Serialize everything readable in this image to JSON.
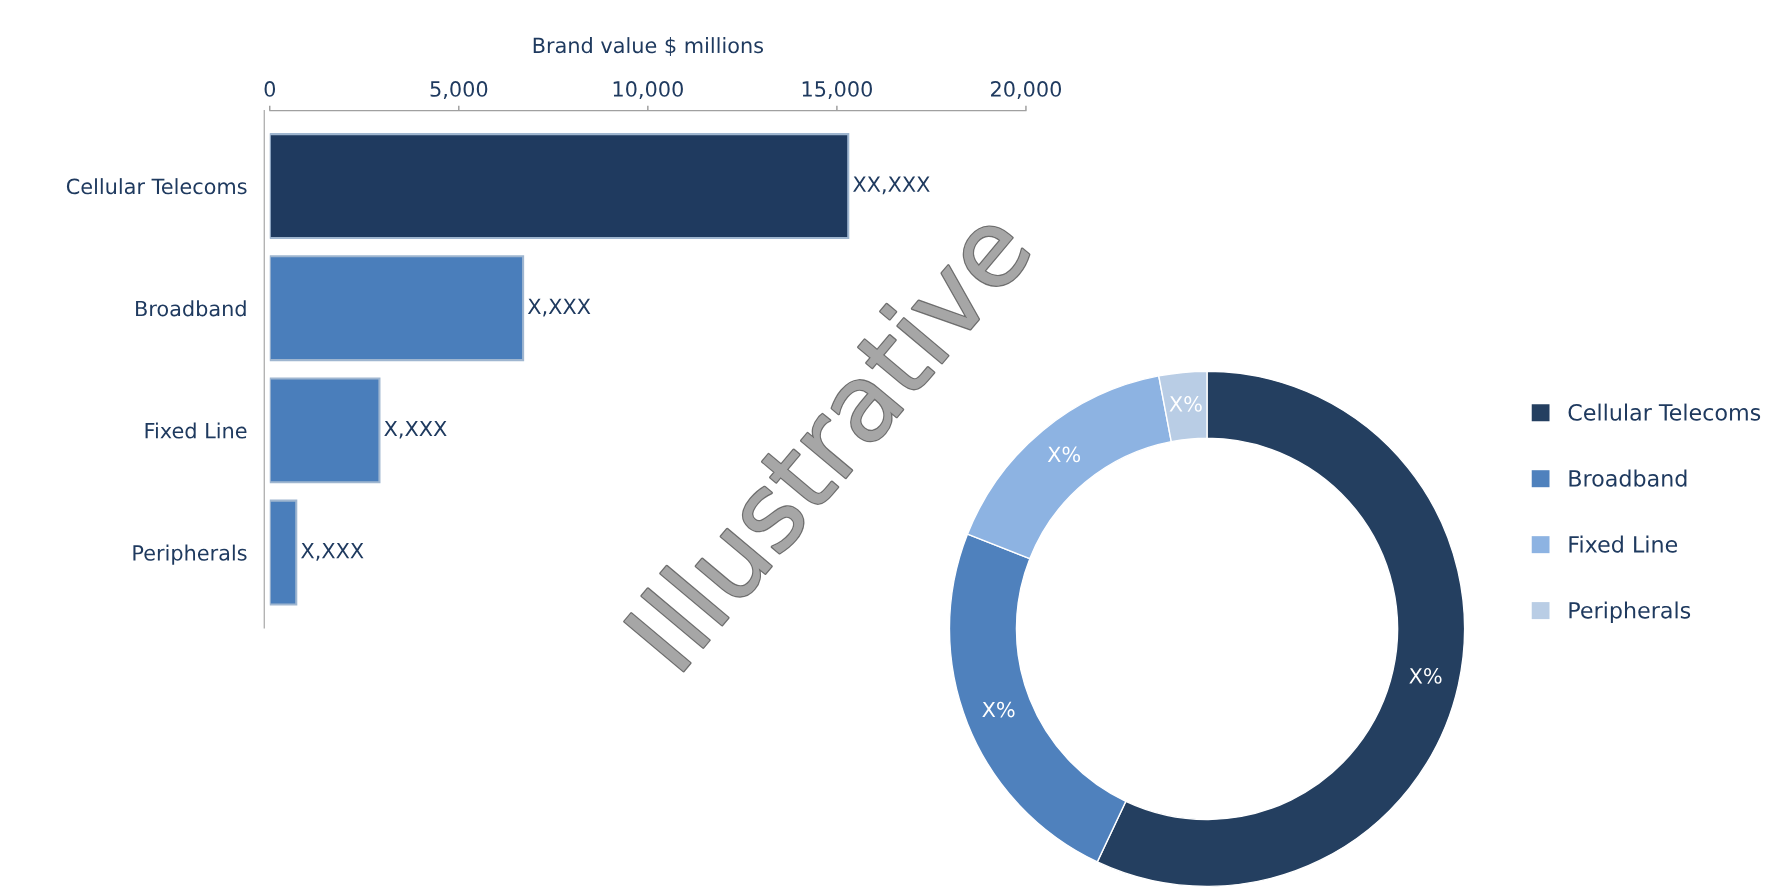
{
  "chart_data": [
    {
      "type": "bar",
      "orientation": "horizontal",
      "xlabel": "Brand value $ millions",
      "categories": [
        "Cellular Telecoms",
        "Broadband",
        "Fixed Line",
        "Peripherals"
      ],
      "values": [
        15300,
        6700,
        2900,
        700
      ],
      "colors": [
        "#1f3a5f",
        "#4a7ebb",
        "#4a7ebb",
        "#4a7ebb"
      ],
      "value_labels": [
        "XX,XXX",
        "X,XXX",
        "X,XXX",
        "X,XXX"
      ],
      "xlim": [
        0,
        20000
      ],
      "xticks": [
        {
          "value": 0,
          "label": "0"
        },
        {
          "value": 5000,
          "label": "5,000"
        },
        {
          "value": 10000,
          "label": "10,000"
        },
        {
          "value": 15000,
          "label": "15,000"
        },
        {
          "value": 20000,
          "label": "20,000"
        }
      ],
      "grid": false,
      "legend": false,
      "annotations": [
        "Illustrative"
      ]
    },
    {
      "type": "donut",
      "categories": [
        "Cellular Telecoms",
        "Broadband",
        "Fixed Line",
        "Peripherals"
      ],
      "values": [
        57,
        24,
        16,
        3
      ],
      "colors": [
        "#243f60",
        "#4f81bd",
        "#8db3e2",
        "#b9cde5"
      ],
      "value_labels": [
        "X%",
        "X%",
        "X%",
        "X%"
      ],
      "legend": "right"
    }
  ]
}
